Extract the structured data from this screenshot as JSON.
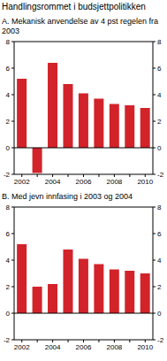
{
  "title": "Handlingsrommet i budsjettpolitikken",
  "chart_data": [
    {
      "type": "bar",
      "title": "A. Mekanisk anvendelse av 4 pst regelen fra 2003",
      "categories": [
        "2002",
        null,
        "2004",
        null,
        "2006",
        null,
        "2008",
        null,
        "2010"
      ],
      "values": [
        5.2,
        -1.9,
        6.4,
        4.8,
        4.1,
        3.7,
        3.3,
        3.2,
        3.0
      ],
      "color": "#d2232a",
      "ylim": [
        -2,
        8
      ],
      "yticks": [
        -2,
        0,
        2,
        4,
        6,
        8
      ],
      "y2lim": [
        -2,
        8
      ],
      "y2ticks": [
        -2,
        0,
        2,
        4,
        6,
        8
      ],
      "grid": false
    },
    {
      "type": "bar",
      "title": "B. Med jevn innfasing i 2003 og 2004",
      "categories": [
        "2002",
        null,
        "2004",
        null,
        "2006",
        null,
        "2008",
        null,
        "2010"
      ],
      "values": [
        5.2,
        2.0,
        2.2,
        4.8,
        4.1,
        3.7,
        3.3,
        3.2,
        3.0
      ],
      "color": "#d2232a",
      "ylim": [
        -2,
        8
      ],
      "yticks": [
        -2,
        0,
        2,
        4,
        6,
        8
      ],
      "y2lim": [
        -2,
        8
      ],
      "y2ticks": [
        -2,
        0,
        2,
        4,
        6,
        8
      ],
      "grid": false
    }
  ]
}
